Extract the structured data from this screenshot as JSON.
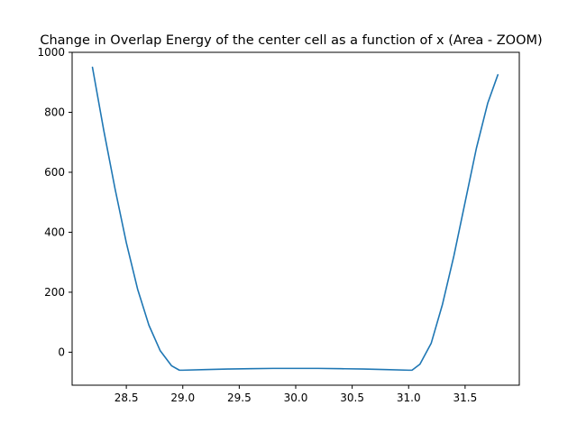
{
  "chart_data": {
    "type": "line",
    "title": "Change in Overlap Energy of the center cell as a function of x (Area - ZOOM)",
    "xlabel": "",
    "ylabel": "",
    "xlim": [
      28.02,
      31.98
    ],
    "ylim": [
      -110,
      1000
    ],
    "xticks": [
      28.5,
      29.0,
      29.5,
      30.0,
      30.5,
      31.0,
      31.5
    ],
    "xtick_labels": [
      "28.5",
      "29.0",
      "29.5",
      "30.0",
      "30.5",
      "31.0",
      "31.5"
    ],
    "yticks": [
      0,
      200,
      400,
      600,
      800,
      1000
    ],
    "ytick_labels": [
      "0",
      "200",
      "400",
      "600",
      "800",
      "1000"
    ],
    "grid": false,
    "line_color": "#1f77b4",
    "series": [
      {
        "x": [
          28.2,
          28.3,
          28.4,
          28.5,
          28.6,
          28.7,
          28.8,
          28.9,
          28.97,
          29.0,
          29.2,
          29.4,
          29.6,
          29.8,
          30.0,
          30.2,
          30.4,
          30.6,
          30.8,
          31.0,
          31.03,
          31.1,
          31.2,
          31.3,
          31.4,
          31.5,
          31.6,
          31.7,
          31.79
        ],
        "y": [
          950,
          740,
          545,
          365,
          210,
          90,
          5,
          -45,
          -60,
          -60,
          -58,
          -56,
          -55,
          -54,
          -54,
          -54,
          -55,
          -56,
          -58,
          -60,
          -60,
          -40,
          30,
          160,
          320,
          500,
          680,
          830,
          925
        ]
      }
    ]
  }
}
